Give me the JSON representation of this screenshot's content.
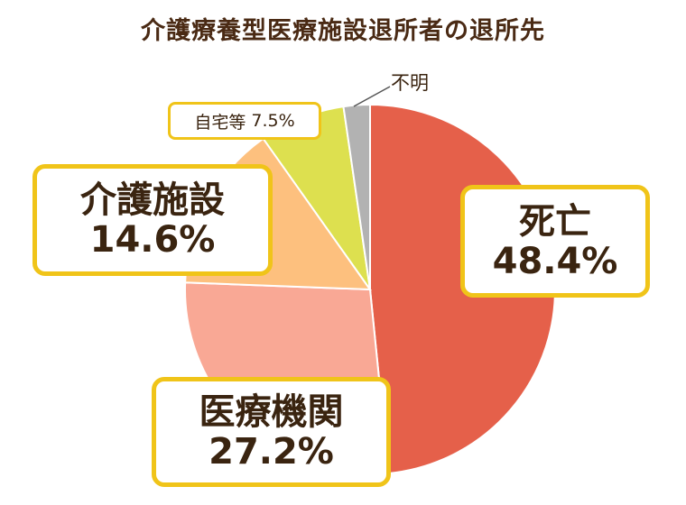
{
  "chart_data": {
    "type": "pie",
    "title": "介護療養型医療施設退所者の退所先",
    "slices": [
      {
        "label": "死亡",
        "value_text": "48.4%",
        "value": 48.4,
        "color": "#e5604a"
      },
      {
        "label": "医療機関",
        "value_text": "27.2%",
        "value": 27.2,
        "color": "#f9a895"
      },
      {
        "label": "介護施設",
        "value_text": "14.6%",
        "value": 14.6,
        "color": "#fdc07e"
      },
      {
        "label": "自宅等",
        "value_text": "7.5%",
        "value": 7.5,
        "color": "#dde04f"
      },
      {
        "label": "不明",
        "value_text": "",
        "value": 2.3,
        "color": "#b2b2b2"
      }
    ],
    "start": "top",
    "direction": "clockwise"
  },
  "colors": {
    "callout_border": "#f0c419",
    "title_text": "#4a2a14"
  }
}
